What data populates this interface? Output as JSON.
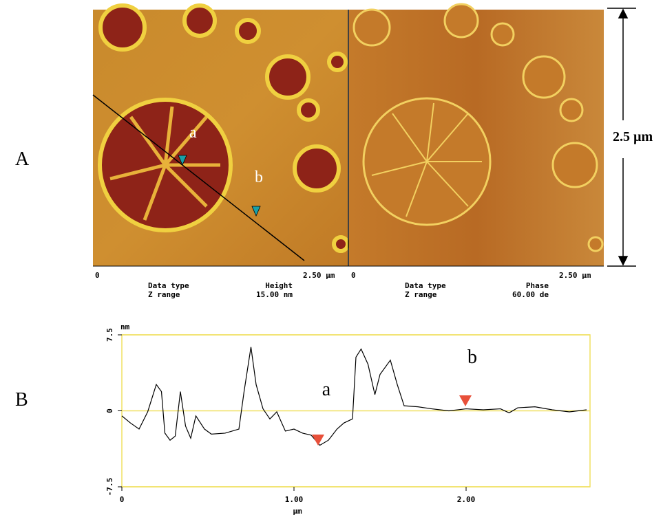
{
  "panel_labels": [
    "A",
    "B"
  ],
  "image_left": {
    "markers": [
      "a",
      "b"
    ],
    "x_start": "0",
    "x_end": "2.50 µm",
    "info_label_1": "Data type",
    "info_label_2": "Z range",
    "info_value_1": "Height",
    "info_value_2": "15.00 nm"
  },
  "image_right": {
    "x_start": "0",
    "x_end": "2.50 µm",
    "info_label_1": "Data type",
    "info_label_2": "Z range",
    "info_value_1": "Phase",
    "info_value_2": "60.00 de"
  },
  "scale_bar": "2.5 µm",
  "chart_data": {
    "type": "line",
    "y_unit": "nm",
    "x_label": "µm",
    "annotations": [
      "a",
      "b"
    ],
    "x": [
      0,
      0.05,
      0.1,
      0.15,
      0.2,
      0.23,
      0.25,
      0.28,
      0.31,
      0.34,
      0.37,
      0.4,
      0.43,
      0.48,
      0.52,
      0.6,
      0.68,
      0.71,
      0.75,
      0.78,
      0.82,
      0.86,
      0.9,
      0.95,
      1.0,
      1.05,
      1.1,
      1.15,
      1.2,
      1.25,
      1.29,
      1.34,
      1.36,
      1.39,
      1.43,
      1.47,
      1.5,
      1.56,
      1.6,
      1.64,
      1.72,
      1.8,
      1.9,
      2.0,
      2.1,
      2.2,
      2.25,
      2.3,
      2.4,
      2.5,
      2.6,
      2.7
    ],
    "series": [
      {
        "color": "#000000",
        "values": [
          -0.5,
          -1.2,
          -1.8,
          -0.1,
          2.6,
          1.9,
          -2.2,
          -2.9,
          -2.5,
          1.9,
          -1.5,
          -2.7,
          -0.5,
          -1.8,
          -2.3,
          -2.2,
          -1.8,
          1.9,
          6.3,
          2.6,
          0.2,
          -0.8,
          -0.1,
          -2.0,
          -1.8,
          -2.2,
          -2.4,
          -3.4,
          -2.9,
          -1.8,
          -1.2,
          -0.8,
          5.3,
          6.1,
          4.6,
          1.6,
          3.6,
          5.0,
          2.6,
          0.5,
          0.4,
          0.2,
          0,
          0.2,
          0.1,
          0.2,
          -0.2,
          0.3,
          0.4,
          0.1,
          -0.1,
          0.1
        ]
      }
    ],
    "xlim": [
      0,
      2.72
    ],
    "xticks": [
      0,
      {
        "value": 1,
        "label": "1.00"
      },
      {
        "value": 2,
        "label": "2.00"
      }
    ],
    "ylim": [
      -7.5,
      7.5
    ],
    "yticks": [
      -7.5,
      0,
      7.5
    ],
    "grid": true
  }
}
